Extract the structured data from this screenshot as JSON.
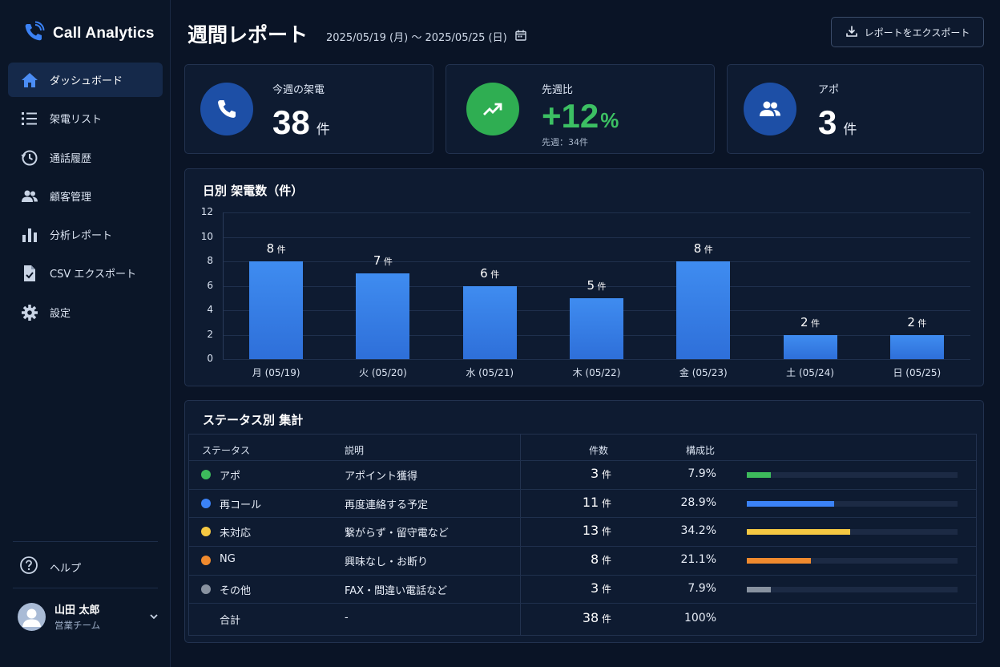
{
  "app": {
    "title": "Call Analytics"
  },
  "sidebar": {
    "items": [
      {
        "label": "ダッシュボード",
        "icon": "home-icon"
      },
      {
        "label": "架電リスト",
        "icon": "list-icon"
      },
      {
        "label": "通話履歴",
        "icon": "history-icon"
      },
      {
        "label": "顧客管理",
        "icon": "users-icon"
      },
      {
        "label": "分析レポート",
        "icon": "bar-chart-icon"
      },
      {
        "label": "CSV エクスポート",
        "icon": "csv-file-icon"
      },
      {
        "label": "設定",
        "icon": "gear-icon"
      }
    ],
    "active_index": 0,
    "help_label": "ヘルプ",
    "user": {
      "name": "山田 太郎",
      "team": "営業チーム"
    }
  },
  "header": {
    "title": "週間レポート",
    "date_range": "2025/05/19 (月) 〜 2025/05/25 (日)",
    "export_label": "レポートをエクスポート"
  },
  "kpis": {
    "calls": {
      "label": "今週の架電",
      "value": "38",
      "unit": "件"
    },
    "change": {
      "label": "先週比",
      "value": "+12",
      "unit": "%",
      "sub": "先週：34件"
    },
    "appointments": {
      "label": "アポ",
      "value": "3",
      "unit": "件"
    }
  },
  "chart_data": {
    "type": "bar",
    "title": "日別 架電数（件）",
    "categories": [
      "月 (05/19)",
      "火 (05/20)",
      "水 (05/21)",
      "木 (05/22)",
      "金 (05/23)",
      "土 (05/24)",
      "日 (05/25)"
    ],
    "values": [
      8,
      7,
      6,
      5,
      8,
      2,
      2
    ],
    "value_unit": "件",
    "ylim": [
      0,
      12
    ],
    "yticks": [
      0,
      2,
      4,
      6,
      8,
      10,
      12
    ],
    "grid": true,
    "bar_color": "#3b82f6"
  },
  "status_table": {
    "title": "ステータス別 集計",
    "headers": {
      "status": "ステータス",
      "desc": "説明",
      "count": "件数",
      "ratio": "構成比"
    },
    "unit": "件",
    "rows": [
      {
        "status": "アポ",
        "desc": "アポイント獲得",
        "count": "3",
        "ratio": "7.9%",
        "share": 0.079,
        "color": "#3dba5c"
      },
      {
        "status": "再コール",
        "desc": "再度連絡する予定",
        "count": "11",
        "ratio": "28.9%",
        "share": 0.289,
        "color": "#3b82f6"
      },
      {
        "status": "未対応",
        "desc": "繋がらず・留守電など",
        "count": "13",
        "ratio": "34.2%",
        "share": 0.342,
        "color": "#f5c842"
      },
      {
        "status": "NG",
        "desc": "興味なし・お断り",
        "count": "8",
        "ratio": "21.1%",
        "share": 0.211,
        "color": "#f08a2e"
      },
      {
        "status": "その他",
        "desc": "FAX・間違い電話など",
        "count": "3",
        "ratio": "7.9%",
        "share": 0.079,
        "color": "#8892a0"
      }
    ],
    "total": {
      "label": "合計",
      "desc": "-",
      "count": "38",
      "ratio": "100%"
    }
  }
}
